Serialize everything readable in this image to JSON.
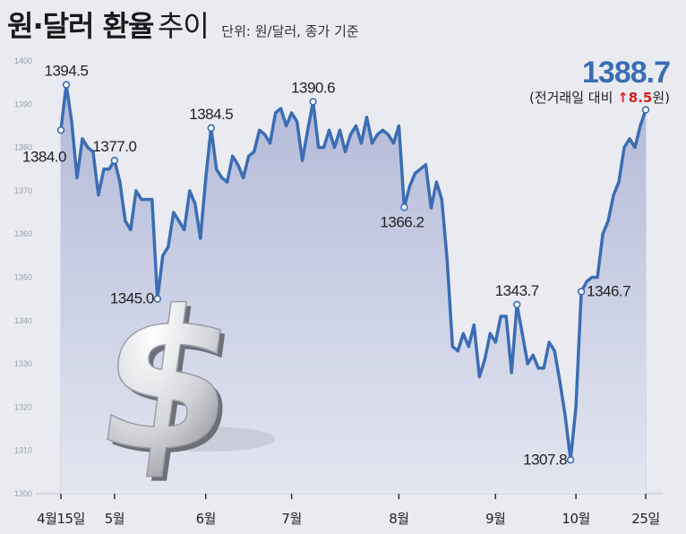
{
  "title": {
    "main": "원·달러 환율",
    "sub": "추이",
    "unit": "단위: 원/달러, 종가 기준"
  },
  "latest": {
    "value": "1388.7",
    "change_prefix": "(전거래일 대비 ",
    "change_arrow": "↑",
    "change_value": "8.5",
    "change_suffix": "원)"
  },
  "colors": {
    "line": "#3b6db3",
    "fill_top": "#b2b9d8",
    "fill_bottom": "#e3e6f0",
    "background": "#e9ebf1",
    "up": "#d81e1e",
    "gridline": "#c2c7d6"
  },
  "decoration": {
    "icon": "dollar-sign-icon"
  },
  "chart_data": {
    "type": "area",
    "ylim": [
      1300,
      1400
    ],
    "yticks": [
      1300,
      1310,
      1320,
      1330,
      1340,
      1350,
      1360,
      1370,
      1380,
      1390,
      1400
    ],
    "xtick_labels": [
      "4월15일",
      "5월",
      "6월",
      "7월",
      "8월",
      "9월",
      "10월",
      "25일"
    ],
    "xtick_index": [
      0,
      10,
      27,
      43,
      63,
      81,
      96,
      109
    ],
    "grid": "vertical at month ticks",
    "series": [
      {
        "values": [
          1384.0,
          1394.5,
          1386.0,
          1373.0,
          1382.0,
          1380.0,
          1379.0,
          1369.0,
          1375.0,
          1375.0,
          1377.0,
          1372.0,
          1363.0,
          1361.0,
          1370.0,
          1368.0,
          1368.0,
          1368.0,
          1345.0,
          1355.0,
          1357.0,
          1365.0,
          1363.0,
          1361.0,
          1370.0,
          1367.0,
          1359.0,
          1373.0,
          1384.5,
          1375.0,
          1373.0,
          1372.0,
          1378.0,
          1376.0,
          1373.0,
          1378.0,
          1379.0,
          1384.0,
          1383.0,
          1381.0,
          1388.0,
          1389.0,
          1385.0,
          1388.0,
          1386.0,
          1377.0,
          1384.0,
          1390.6,
          1380.0,
          1380.0,
          1384.0,
          1380.0,
          1384.0,
          1379.0,
          1383.0,
          1385.0,
          1381.0,
          1387.0,
          1381.0,
          1383.0,
          1384.0,
          1383.0,
          1381.0,
          1385.0,
          1366.2,
          1371.0,
          1374.0,
          1375.0,
          1376.0,
          1366.0,
          1372.0,
          1368.0,
          1354.0,
          1334.0,
          1333.0,
          1337.0,
          1334.0,
          1339.0,
          1327.0,
          1331.0,
          1337.0,
          1335.0,
          1341.0,
          1341.0,
          1328.0,
          1343.7,
          1337.0,
          1330.0,
          1332.0,
          1329.0,
          1329.0,
          1335.0,
          1333.0,
          1326.0,
          1318.0,
          1307.8,
          1320.0,
          1346.7,
          1349.0,
          1350.0,
          1350.0,
          1360.0,
          1363.0,
          1369.0,
          1372.0,
          1380.0,
          1382.0,
          1380.0,
          1385.0,
          1388.7
        ]
      }
    ],
    "annotations": [
      {
        "label": "1394.5",
        "index": 1,
        "pos": "above"
      },
      {
        "label": "1384.0",
        "index": 0,
        "pos": "left"
      },
      {
        "label": "1377.0",
        "index": 10,
        "pos": "above"
      },
      {
        "label": "1345.0",
        "index": 18,
        "pos": "left"
      },
      {
        "label": "1384.5",
        "index": 28,
        "pos": "above"
      },
      {
        "label": "1390.6",
        "index": 47,
        "pos": "above"
      },
      {
        "label": "1366.2",
        "index": 64,
        "pos": "below"
      },
      {
        "label": "1343.7",
        "index": 85,
        "pos": "above"
      },
      {
        "label": "1307.8",
        "index": 95,
        "pos": "left"
      },
      {
        "label": "1346.7",
        "index": 97,
        "pos": "right"
      }
    ]
  }
}
